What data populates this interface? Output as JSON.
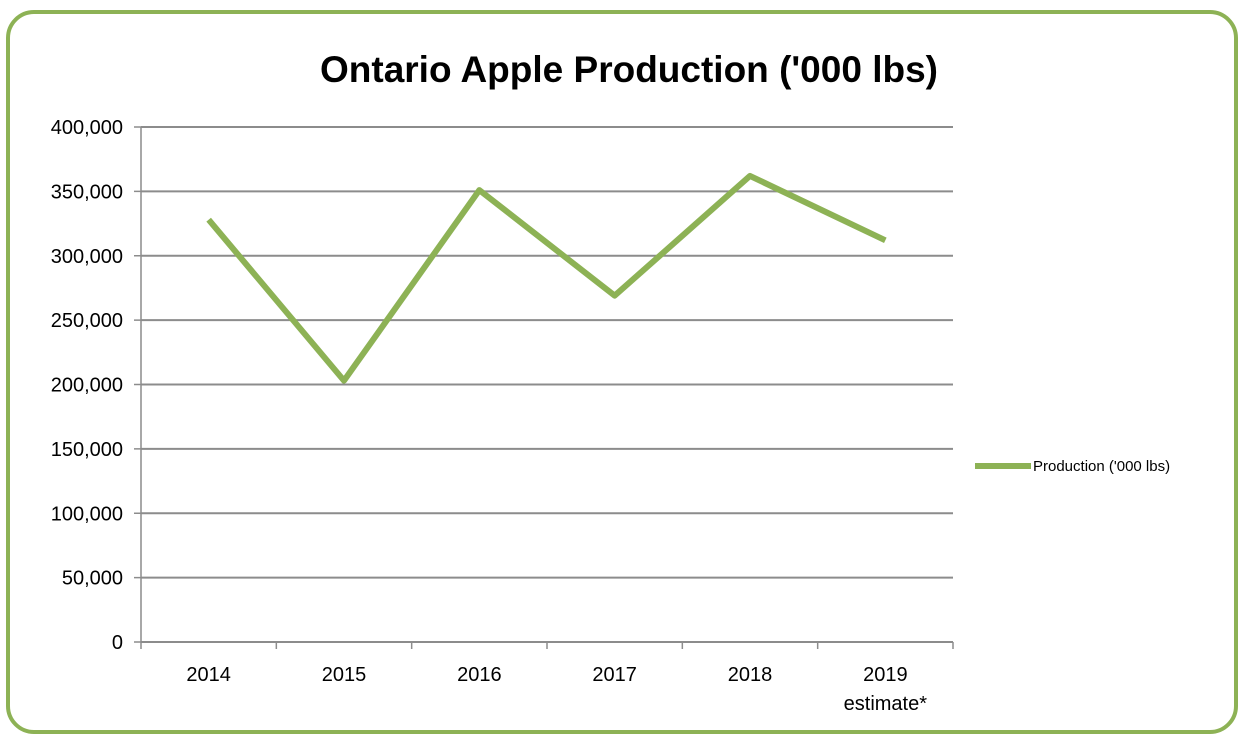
{
  "chart_data": {
    "type": "line",
    "title": "Ontario Apple Production ('000 lbs)",
    "xlabel": "",
    "ylabel": "",
    "categories": [
      "2014",
      "2015",
      "2016",
      "2017",
      "2018",
      "2019 estimate*"
    ],
    "series": [
      {
        "name": "Production ('000 lbs)",
        "color": "#8db255",
        "values": [
          328000,
          203000,
          351000,
          269000,
          362000,
          312000
        ]
      }
    ],
    "ylim": [
      0,
      400000
    ],
    "yticks": [
      "0",
      "50,000",
      "100,000",
      "150,000",
      "200,000",
      "250,000",
      "300,000",
      "350,000",
      "400,000"
    ],
    "grid": true,
    "legend": "right"
  }
}
